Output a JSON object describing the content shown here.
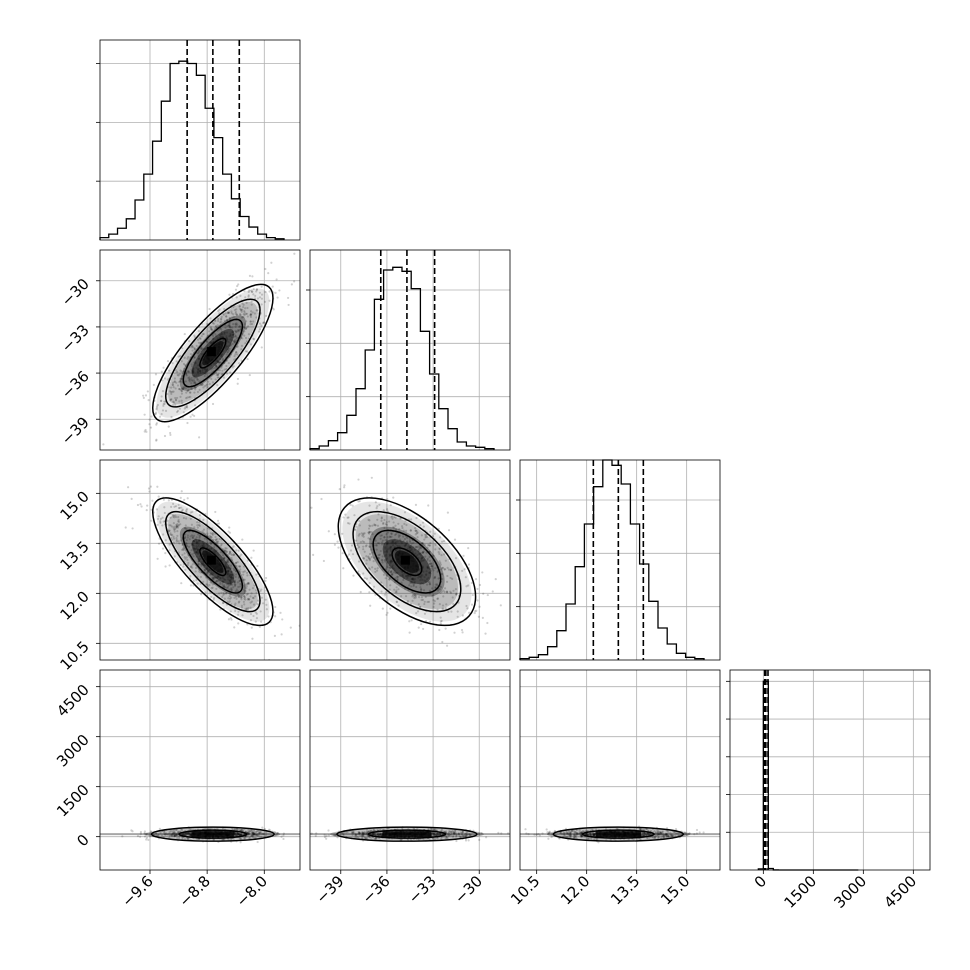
{
  "chart_data": {
    "type": "corner",
    "grid": true,
    "parameters": [
      {
        "range": [
          -10.3,
          -7.5
        ],
        "ticks": [
          -9.6,
          -8.8,
          -8.0
        ],
        "tick_labels": [
          "−9.6",
          "−8.8",
          "−8.0"
        ],
        "quantiles": [
          -9.08,
          -8.72,
          -8.35
        ],
        "hist_bins": [
          2,
          5,
          10,
          18,
          34,
          56,
          84,
          118,
          150,
          152,
          150,
          140,
          112,
          87,
          56,
          35,
          20,
          11,
          5,
          2,
          1
        ]
      },
      {
        "range": [
          -41.0,
          -28.0
        ],
        "ticks": [
          -39,
          -36,
          -33,
          -30
        ],
        "tick_labels": [
          "−39",
          "−36",
          "−33",
          "−30"
        ],
        "quantiles": [
          -36.4,
          -34.7,
          -32.9
        ],
        "hist_bins": [
          1,
          3,
          7,
          13,
          26,
          46,
          75,
          113,
          135,
          137,
          134,
          121,
          89,
          57,
          31,
          16,
          6,
          3,
          2,
          1
        ]
      },
      {
        "range": [
          10.0,
          16.0
        ],
        "ticks": [
          10.5,
          12.0,
          13.5,
          15.0
        ],
        "tick_labels": [
          "10.5",
          "12.0",
          "13.5",
          "15.0"
        ],
        "quantiles": [
          12.2,
          12.95,
          13.7
        ],
        "hist_bins": [
          1,
          2,
          4,
          10,
          22,
          42,
          70,
          102,
          130,
          150,
          146,
          132,
          102,
          72,
          44,
          24,
          12,
          5,
          2,
          1
        ]
      },
      {
        "range": [
          -1000,
          5000
        ],
        "ticks": [
          0,
          1500,
          3000,
          4500
        ],
        "tick_labels": [
          "0",
          "1500",
          "3000",
          "4500"
        ],
        "quantiles": [
          40,
          75,
          140
        ],
        "hist_bins": [
          30,
          5000,
          40,
          2,
          0,
          0,
          0,
          0,
          0,
          0,
          0,
          0,
          0,
          0,
          0,
          0,
          0,
          0,
          0,
          0
        ],
        "hist_bin_edges": [
          -150,
          0,
          150,
          300,
          450,
          600,
          750,
          900,
          1050,
          1200,
          1350,
          1500,
          1650,
          1800,
          1950,
          2100,
          2250,
          2400,
          2550,
          2700,
          2850
        ]
      }
    ],
    "hist_ticks": [
      [
        50,
        100,
        150
      ],
      [
        40,
        80,
        120
      ],
      [
        40,
        80,
        120
      ],
      [
        1000,
        2000,
        3000,
        4000,
        5000
      ]
    ],
    "hist_ylim": [
      [
        0,
        170
      ],
      [
        0,
        150
      ],
      [
        0,
        150
      ],
      [
        0,
        5300
      ]
    ],
    "pair_summaries": [
      {
        "pair": [
          1,
          0
        ],
        "center": [
          -8.72,
          -34.7
        ],
        "sigma": [
          0.33,
          1.75
        ],
        "rho": 0.8
      },
      {
        "pair": [
          2,
          0
        ],
        "center": [
          -8.72,
          12.95
        ],
        "sigma": [
          0.33,
          0.75
        ],
        "rho": -0.78
      },
      {
        "pair": [
          2,
          1
        ],
        "center": [
          -34.7,
          12.95
        ],
        "sigma": [
          1.75,
          0.75
        ],
        "rho": -0.55
      },
      {
        "pair": [
          3,
          0
        ],
        "center": [
          -8.72,
          75
        ],
        "sigma": [
          0.33,
          60
        ],
        "rho": 0.0
      },
      {
        "pair": [
          3,
          1
        ],
        "center": [
          -34.7,
          75
        ],
        "sigma": [
          1.75,
          60
        ],
        "rho": 0.0
      },
      {
        "pair": [
          3,
          2
        ],
        "center": [
          12.95,
          75
        ],
        "sigma": [
          0.75,
          60
        ],
        "rho": 0.0
      }
    ]
  }
}
